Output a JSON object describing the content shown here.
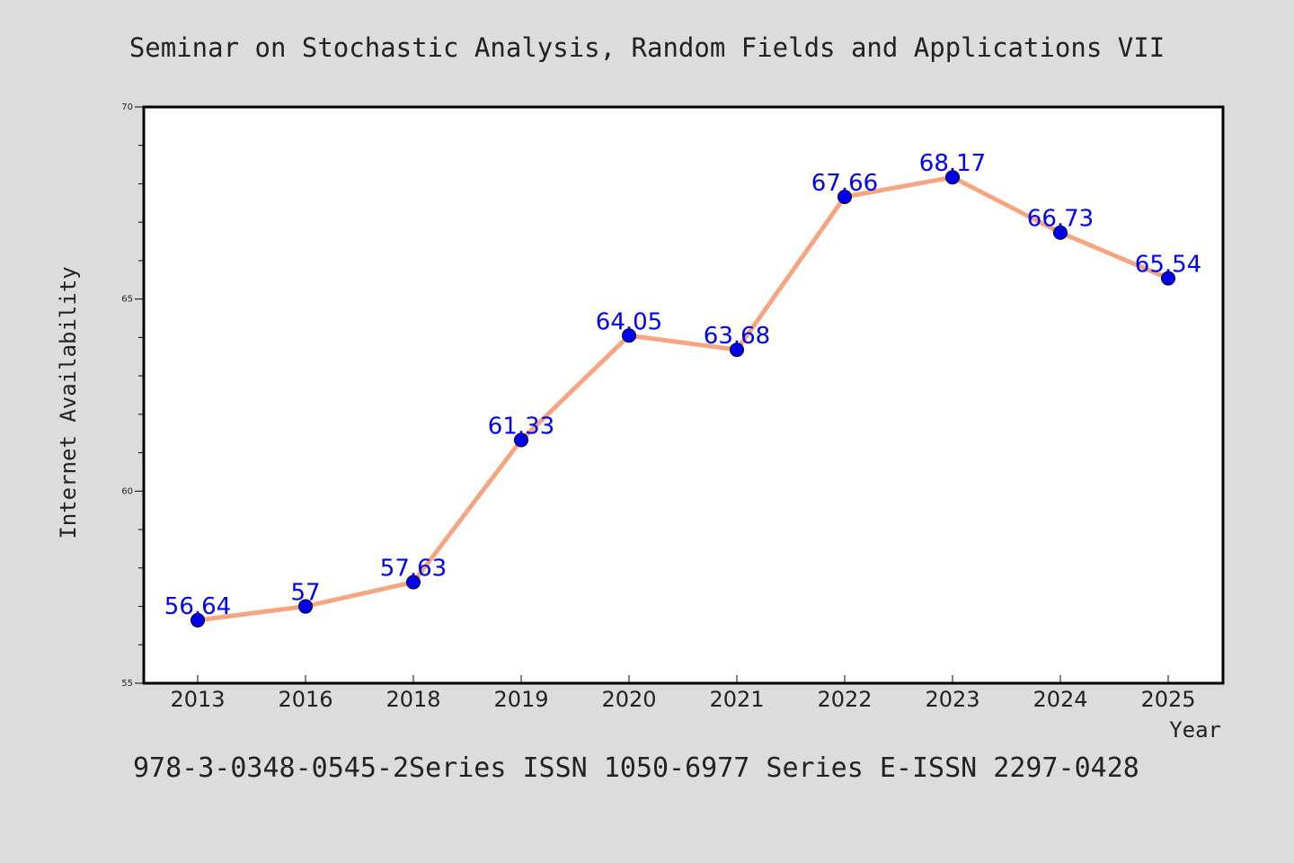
{
  "colors": {
    "background": "#dcdcdc",
    "plot_background": "#ffffff",
    "line": "#f4a582",
    "marker": "#0000ee",
    "data_label": "#0000ee",
    "text": "#222222"
  },
  "footer": "978-3-0348-0545-2Series ISSN 1050-6977 Series E-ISSN 2297-0428",
  "chart_data": {
    "type": "line",
    "title": "Seminar on Stochastic Analysis, Random Fields and Applications VII",
    "xlabel": "Year",
    "ylabel": "Internet Availability",
    "categories": [
      "2013",
      "2016",
      "2018",
      "2019",
      "2020",
      "2021",
      "2022",
      "2023",
      "2024",
      "2025"
    ],
    "series": [
      {
        "values": [
          56.64,
          57,
          57.63,
          61.33,
          64.05,
          63.68,
          67.66,
          68.17,
          66.73,
          65.54
        ],
        "labels": [
          "56.64",
          "57",
          "57.63",
          "61.33",
          "64.05",
          "63.68",
          "67.66",
          "68.17",
          "66.73",
          "65.54"
        ]
      }
    ],
    "ylim": [
      55,
      70
    ],
    "yticks": [
      "55",
      "60",
      "65",
      "70"
    ],
    "grid": false,
    "legend": "none"
  }
}
